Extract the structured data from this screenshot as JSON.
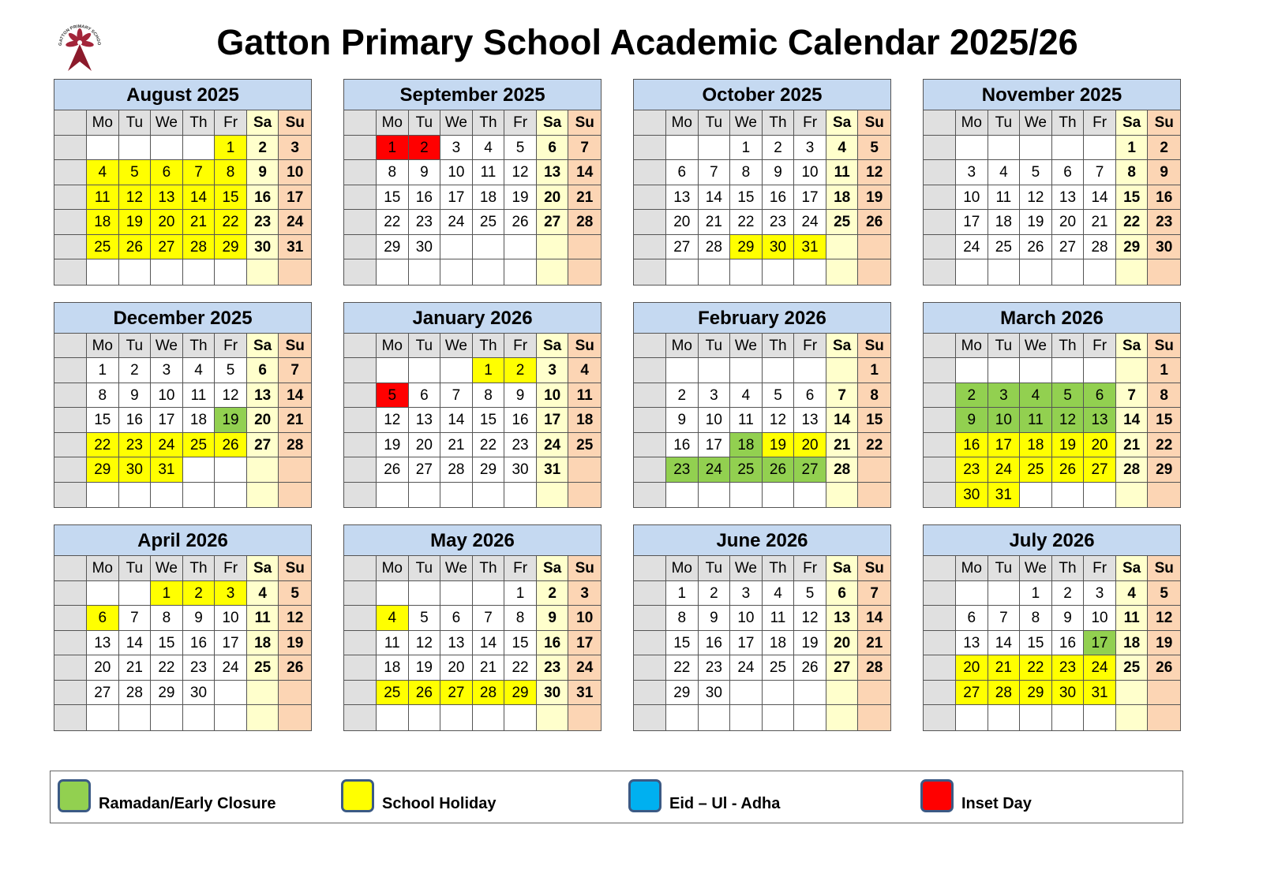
{
  "title": "Gatton Primary School Academic Calendar 2025/26",
  "logo": {
    "text": "GATTON PRIMARY SCHOOL",
    "color": "#8b1a2b"
  },
  "weekdays": [
    "Mo",
    "Tu",
    "We",
    "Th",
    "Fr",
    "Sa",
    "Su"
  ],
  "colors": {
    "header": "#c5d9f1",
    "saturday": "#ffffcc",
    "sunday": "#fcd5b4",
    "holiday": "#ffff00",
    "ramadan": "#92d050",
    "eid": "#00b0f0",
    "inset": "#ff0000"
  },
  "months": [
    {
      "name": "August 2025",
      "start": 4,
      "days": 31,
      "holiday": [
        1,
        4,
        5,
        6,
        7,
        8,
        11,
        12,
        13,
        14,
        15,
        18,
        19,
        20,
        21,
        22,
        25,
        26,
        27,
        28,
        29
      ]
    },
    {
      "name": "September 2025",
      "start": 0,
      "days": 30,
      "inset": [
        1,
        2
      ]
    },
    {
      "name": "October 2025",
      "start": 2,
      "days": 31,
      "holiday": [
        29,
        30,
        31
      ]
    },
    {
      "name": "November 2025",
      "start": 5,
      "days": 30
    },
    {
      "name": "December 2025",
      "start": 0,
      "days": 31,
      "ramadan": [
        19
      ],
      "holiday": [
        22,
        23,
        24,
        25,
        26,
        29,
        30,
        31
      ]
    },
    {
      "name": "January 2026",
      "start": 3,
      "days": 31,
      "holiday": [
        1,
        2
      ],
      "inset": [
        5
      ]
    },
    {
      "name": "February 2026",
      "start": 6,
      "days": 28,
      "ramadan": [
        18,
        23,
        24,
        25,
        26,
        27
      ],
      "holiday": [
        19,
        20
      ]
    },
    {
      "name": "March 2026",
      "start": 6,
      "days": 31,
      "ramadan": [
        2,
        3,
        4,
        5,
        6,
        9,
        10,
        11,
        12,
        13
      ],
      "holiday": [
        16,
        17,
        18,
        19,
        20,
        23,
        24,
        25,
        26,
        27,
        30,
        31
      ]
    },
    {
      "name": "April 2026",
      "start": 2,
      "days": 30,
      "holiday": [
        1,
        2,
        3,
        6
      ]
    },
    {
      "name": "May 2026",
      "start": 4,
      "days": 31,
      "holiday": [
        4,
        25,
        26,
        27,
        28,
        29
      ]
    },
    {
      "name": "June 2026",
      "start": 0,
      "days": 30
    },
    {
      "name": "July 2026",
      "start": 2,
      "days": 31,
      "ramadan": [
        17
      ],
      "holiday": [
        20,
        21,
        22,
        23,
        24,
        27,
        28,
        29,
        30,
        31
      ]
    }
  ],
  "legend": [
    {
      "key": "ramadan",
      "label": "Ramadan/Early Closure"
    },
    {
      "key": "holiday",
      "label": "School Holiday"
    },
    {
      "key": "eid",
      "label": "Eid – Ul - Adha"
    },
    {
      "key": "inset",
      "label": "Inset Day"
    }
  ]
}
